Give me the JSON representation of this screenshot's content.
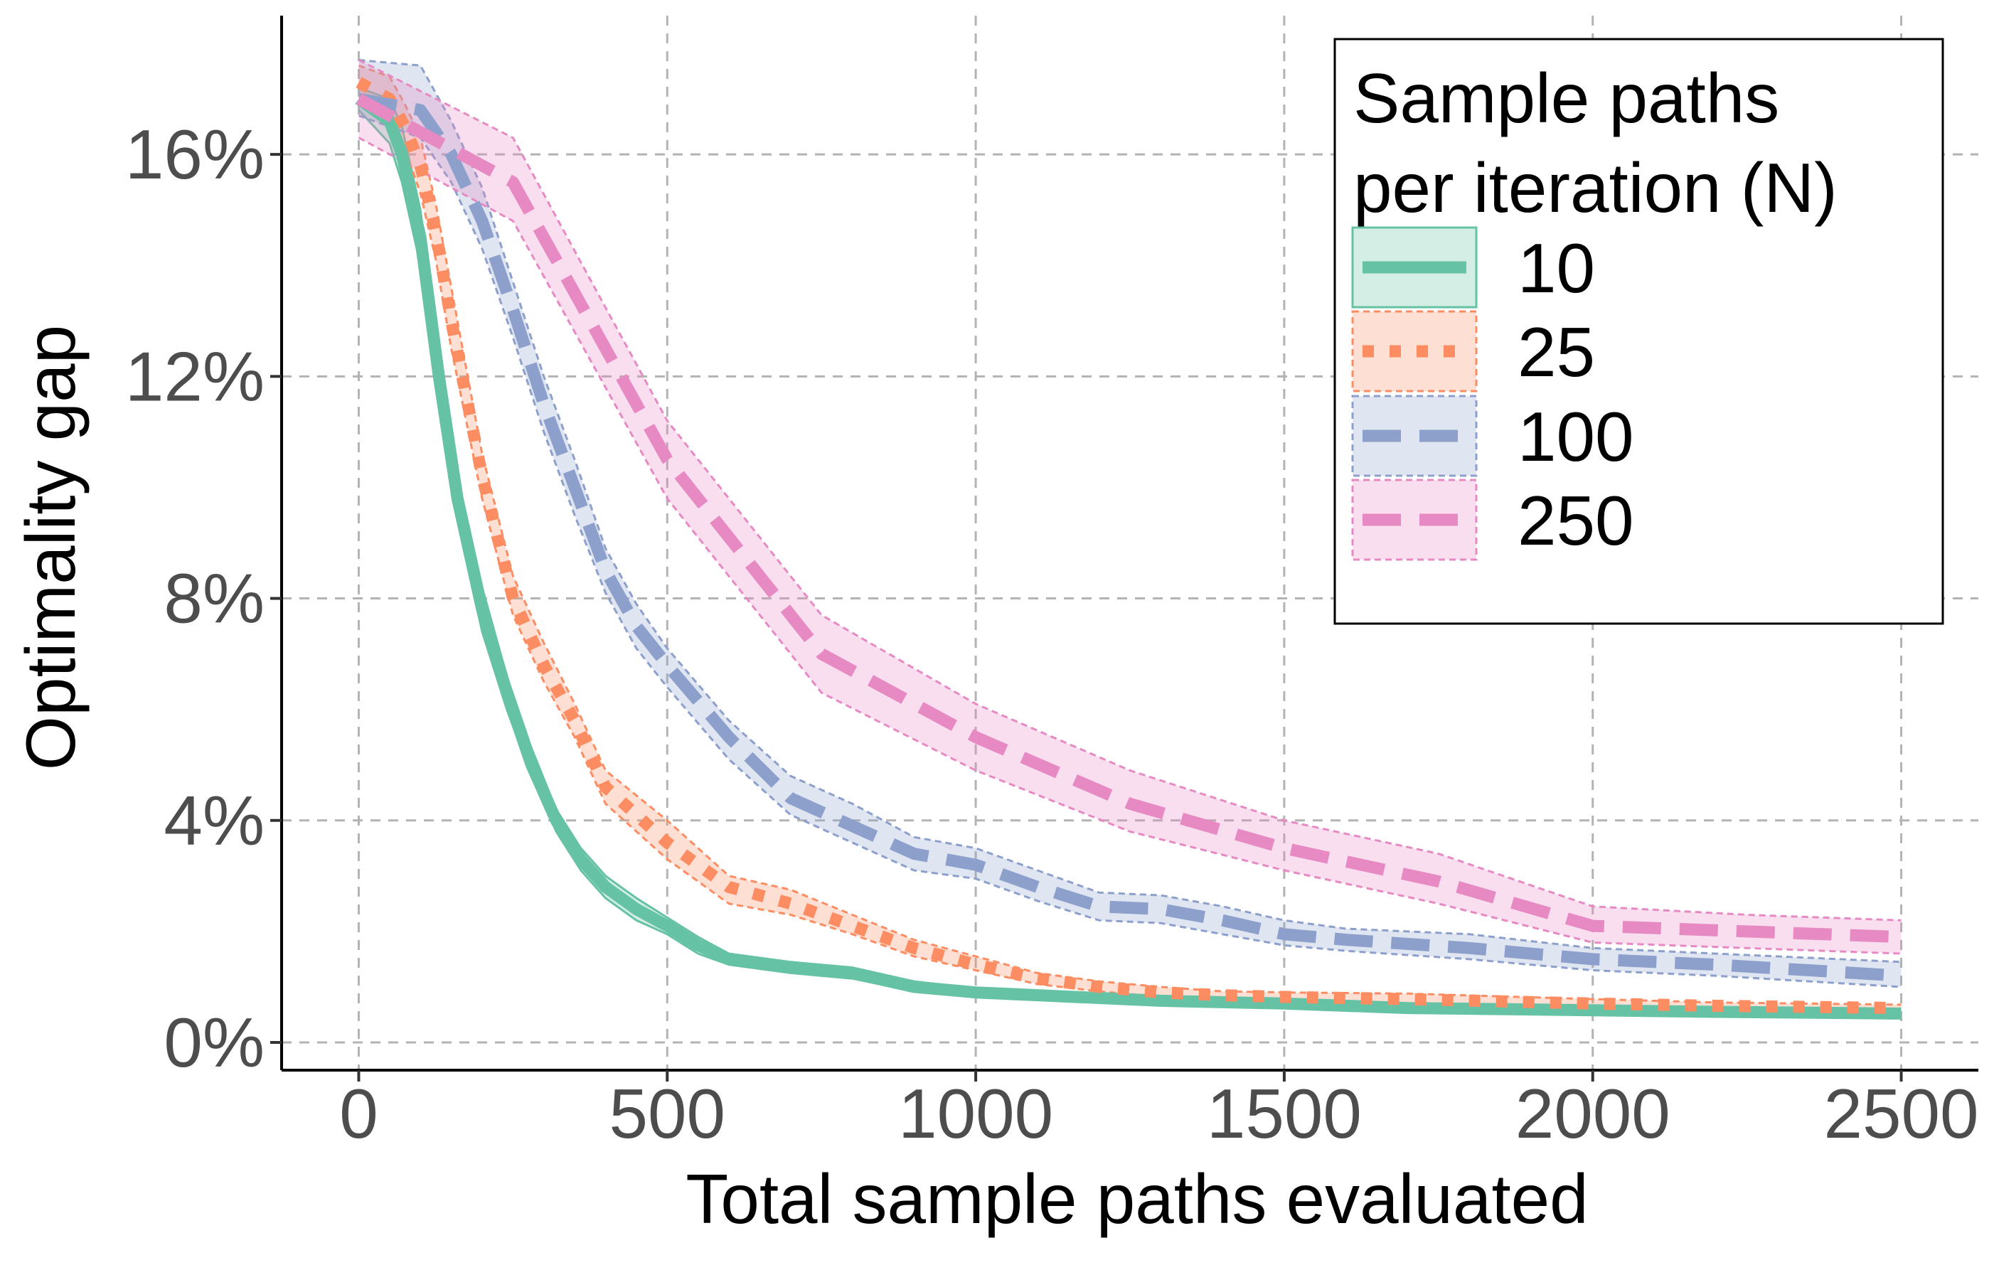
{
  "chart_data": {
    "type": "line",
    "title": "",
    "xlabel": "Total sample paths evaluated",
    "ylabel": "Optimality gap",
    "xlim": [
      -125,
      2625
    ],
    "ylim": [
      -0.5,
      18.5
    ],
    "xticks": [
      0,
      500,
      1000,
      1500,
      2000,
      2500
    ],
    "xtick_labels": [
      "0",
      "500",
      "1000",
      "1500",
      "2000",
      "2500"
    ],
    "yticks": [
      0,
      4,
      8,
      12,
      16
    ],
    "ytick_labels": [
      "0%",
      "4%",
      "8%",
      "12%",
      "16%"
    ],
    "grid": true,
    "legend": {
      "title_line1": "Sample paths",
      "title_line2": "per iteration (N)",
      "position": "top-right"
    },
    "series": [
      {
        "name": "10",
        "color": "#66c2a5",
        "dash": "solid",
        "x": [
          0,
          50,
          70,
          100,
          130,
          160,
          200,
          240,
          280,
          320,
          360,
          400,
          450,
          500,
          550,
          600,
          700,
          800,
          900,
          1000,
          1100,
          1200,
          1300,
          1500,
          1700,
          2000,
          2200,
          2500
        ],
        "y": [
          17.0,
          16.6,
          16.0,
          14.5,
          12.0,
          9.8,
          7.8,
          6.3,
          5.0,
          4.0,
          3.3,
          2.8,
          2.4,
          2.1,
          1.75,
          1.5,
          1.35,
          1.25,
          1.0,
          0.9,
          0.85,
          0.8,
          0.75,
          0.7,
          0.62,
          0.58,
          0.55,
          0.52
        ],
        "lower": [
          16.8,
          16.2,
          15.5,
          14.0,
          11.5,
          9.4,
          7.4,
          6.0,
          4.8,
          3.8,
          3.1,
          2.6,
          2.2,
          1.95,
          1.6,
          1.4,
          1.25,
          1.15,
          0.92,
          0.85,
          0.8,
          0.75,
          0.7,
          0.65,
          0.58,
          0.54,
          0.5,
          0.48
        ],
        "upper": [
          17.2,
          17.0,
          16.5,
          15.0,
          12.5,
          10.2,
          8.2,
          6.6,
          5.3,
          4.2,
          3.5,
          3.0,
          2.6,
          2.25,
          1.9,
          1.6,
          1.45,
          1.35,
          1.1,
          0.97,
          0.92,
          0.87,
          0.8,
          0.75,
          0.66,
          0.62,
          0.6,
          0.56
        ]
      },
      {
        "name": "25",
        "color": "#fc8d62",
        "dash": "dotted",
        "x": [
          0,
          50,
          75,
          100,
          125,
          150,
          200,
          250,
          300,
          350,
          400,
          500,
          600,
          700,
          800,
          900,
          1000,
          1100,
          1200,
          1300,
          1400,
          1500,
          1700,
          2000,
          2200,
          2500
        ],
        "y": [
          17.3,
          17.0,
          16.5,
          15.8,
          14.6,
          13.0,
          10.2,
          8.0,
          6.8,
          5.8,
          4.6,
          3.6,
          2.8,
          2.5,
          2.1,
          1.7,
          1.4,
          1.15,
          1.0,
          0.9,
          0.85,
          0.82,
          0.78,
          0.7,
          0.66,
          0.62
        ],
        "lower": [
          17.0,
          16.7,
          16.1,
          15.3,
          14.1,
          12.5,
          9.8,
          7.7,
          6.5,
          5.5,
          4.3,
          3.3,
          2.5,
          2.3,
          1.95,
          1.55,
          1.3,
          1.05,
          0.92,
          0.82,
          0.78,
          0.75,
          0.7,
          0.63,
          0.6,
          0.56
        ],
        "upper": [
          17.6,
          17.4,
          16.9,
          16.3,
          15.1,
          13.6,
          10.6,
          8.4,
          7.2,
          6.1,
          4.9,
          4.0,
          3.0,
          2.75,
          2.3,
          1.85,
          1.55,
          1.25,
          1.1,
          1.0,
          0.92,
          0.9,
          0.88,
          0.78,
          0.72,
          0.68
        ]
      },
      {
        "name": "100",
        "color": "#8da0cb",
        "dash": "dashed",
        "x": [
          0,
          100,
          150,
          200,
          250,
          300,
          350,
          400,
          450,
          500,
          600,
          700,
          800,
          900,
          1000,
          1100,
          1200,
          1300,
          1400,
          1500,
          1600,
          1800,
          2000,
          2200,
          2500
        ],
        "y": [
          17.0,
          16.8,
          16.0,
          14.8,
          13.2,
          11.5,
          10.0,
          8.5,
          7.5,
          6.8,
          5.5,
          4.4,
          3.9,
          3.4,
          3.2,
          2.8,
          2.45,
          2.4,
          2.2,
          1.95,
          1.85,
          1.7,
          1.5,
          1.4,
          1.2
        ],
        "lower": [
          16.7,
          16.3,
          15.5,
          14.3,
          12.7,
          11.0,
          9.5,
          8.1,
          7.1,
          6.4,
          5.1,
          4.1,
          3.6,
          3.1,
          2.95,
          2.55,
          2.2,
          2.15,
          1.95,
          1.75,
          1.65,
          1.5,
          1.3,
          1.2,
          1.0
        ],
        "upper": [
          17.7,
          17.6,
          16.6,
          15.4,
          13.7,
          12.0,
          10.5,
          8.9,
          7.9,
          7.1,
          5.8,
          4.8,
          4.3,
          3.7,
          3.5,
          3.1,
          2.7,
          2.65,
          2.45,
          2.2,
          2.05,
          1.95,
          1.7,
          1.6,
          1.45
        ]
      },
      {
        "name": "250",
        "color": "#e78ac3",
        "dash": "dashed",
        "x": [
          0,
          250,
          500,
          750,
          1000,
          1250,
          1500,
          1750,
          2000,
          2250,
          2500
        ],
        "y": [
          17.0,
          15.5,
          10.5,
          7.0,
          5.5,
          4.3,
          3.5,
          2.9,
          2.1,
          2.0,
          1.9
        ],
        "lower": [
          16.3,
          14.8,
          9.8,
          6.3,
          4.9,
          3.8,
          3.1,
          2.5,
          1.8,
          1.7,
          1.6
        ],
        "upper": [
          17.7,
          16.3,
          11.2,
          7.7,
          6.1,
          4.9,
          4.0,
          3.4,
          2.45,
          2.3,
          2.2
        ]
      }
    ]
  }
}
